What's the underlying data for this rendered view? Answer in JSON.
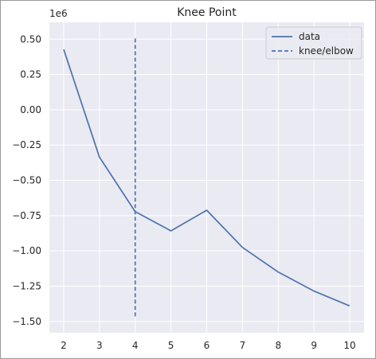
{
  "chart_data": {
    "type": "line",
    "title": "Knee Point",
    "xlabel": "",
    "ylabel": "",
    "y_offset_label": "1e6",
    "x": [
      2,
      3,
      4,
      5,
      6,
      7,
      8,
      9,
      10
    ],
    "series": [
      {
        "name": "data",
        "style": "solid",
        "values": [
          427000,
          -335000,
          -722000,
          -858000,
          -712000,
          -975000,
          -1150000,
          -1285000,
          -1390000
        ]
      }
    ],
    "vlines": [
      {
        "name": "knee/elbow",
        "style": "dashed",
        "x": 4,
        "ymin": -1475000,
        "ymax": 505000
      }
    ],
    "xlim": [
      1.6,
      10.4
    ],
    "ylim": [
      -1.58,
      0.62
    ],
    "xticks": [
      2,
      3,
      4,
      5,
      6,
      7,
      8,
      9,
      10
    ],
    "yticks": [
      0.5,
      0.25,
      0.0,
      -0.25,
      -0.5,
      -0.75,
      -1.0,
      -1.25,
      -1.5
    ],
    "ytick_labels": [
      "0.50",
      "0.25",
      "0.00",
      "−0.25",
      "−0.50",
      "−0.75",
      "−1.00",
      "−1.25",
      "−1.50"
    ],
    "grid": true,
    "legend_position": "top-right",
    "colors": {
      "axes_background": "#eaeaf2",
      "grid": "#ffffff",
      "line": "#4c72b0"
    }
  }
}
